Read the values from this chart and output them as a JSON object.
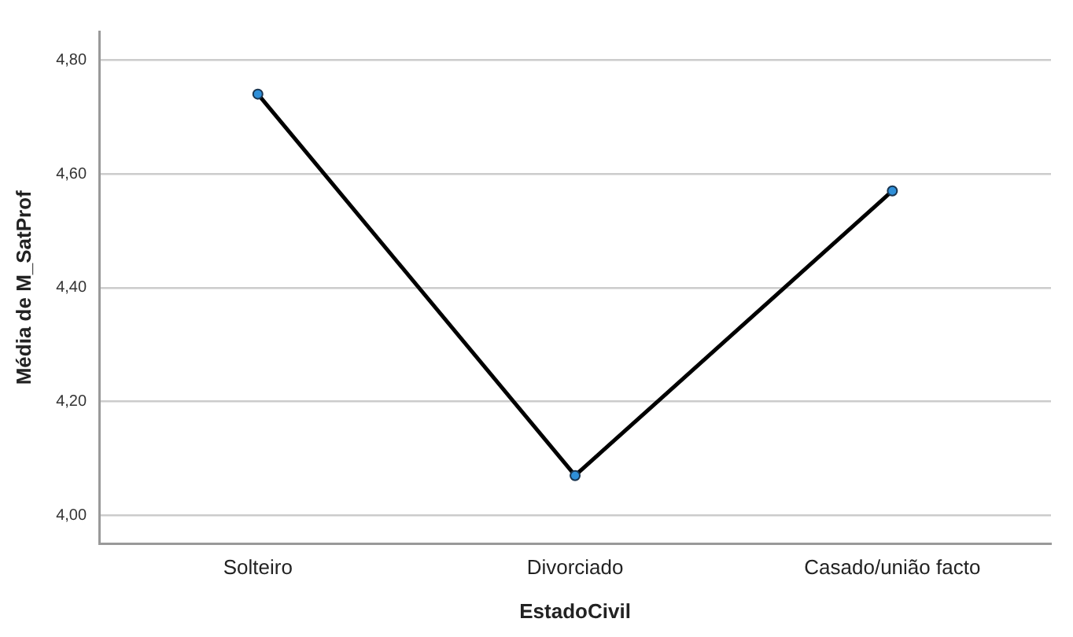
{
  "chart_data": {
    "type": "line",
    "xlabel": "EstadoCivil",
    "ylabel": "Média de M_SatProf",
    "categories": [
      "Solteiro",
      "Divorciado",
      "Casado/união facto"
    ],
    "series": [
      {
        "color": "#000000",
        "values": [
          4.74,
          4.07,
          4.57
        ]
      }
    ],
    "ylim": [
      3.95,
      4.85
    ],
    "yticks": [
      {
        "value": 4.0,
        "label": "4,00"
      },
      {
        "value": 4.2,
        "label": "4,20"
      },
      {
        "value": 4.4,
        "label": "4,40"
      },
      {
        "value": 4.6,
        "label": "4,60"
      },
      {
        "value": 4.8,
        "label": "4,80"
      }
    ],
    "grid": "y",
    "legend": false,
    "marker": "circle",
    "line_style": "solid"
  }
}
